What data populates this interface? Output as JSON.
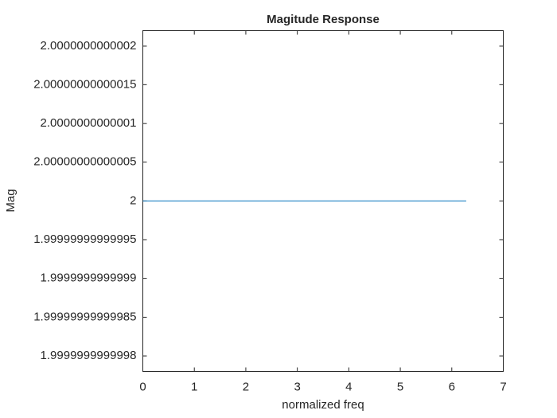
{
  "chart_data": {
    "type": "line",
    "title": "Magitude Response",
    "xlabel": "normalized freq",
    "ylabel": "Mag",
    "x": [
      0,
      1,
      2,
      3,
      4,
      5,
      6,
      6.28
    ],
    "series": [
      {
        "color": "#0072bd",
        "values": [
          2,
          2,
          2,
          2,
          2,
          2,
          2,
          2
        ]
      }
    ],
    "xlim": [
      0,
      7
    ],
    "xticks": [
      0,
      1,
      2,
      3,
      4,
      5,
      6,
      7
    ],
    "ylim": [
      1.99999999999978,
      2.00000000000022
    ],
    "yticks": [
      {
        "value": 1.9999999999998,
        "label": "1.9999999999998"
      },
      {
        "value": 1.99999999999985,
        "label": "1.99999999999985"
      },
      {
        "value": 1.9999999999999,
        "label": "1.9999999999999"
      },
      {
        "value": 1.99999999999995,
        "label": "1.99999999999995"
      },
      2,
      {
        "value": 2.00000000000005,
        "label": "2.00000000000005"
      },
      {
        "value": 2.0000000000001,
        "label": "2.0000000000001"
      },
      {
        "value": 2.00000000000015,
        "label": "2.00000000000015"
      },
      {
        "value": 2.0000000000002,
        "label": "2.0000000000002"
      }
    ],
    "grid": false
  }
}
